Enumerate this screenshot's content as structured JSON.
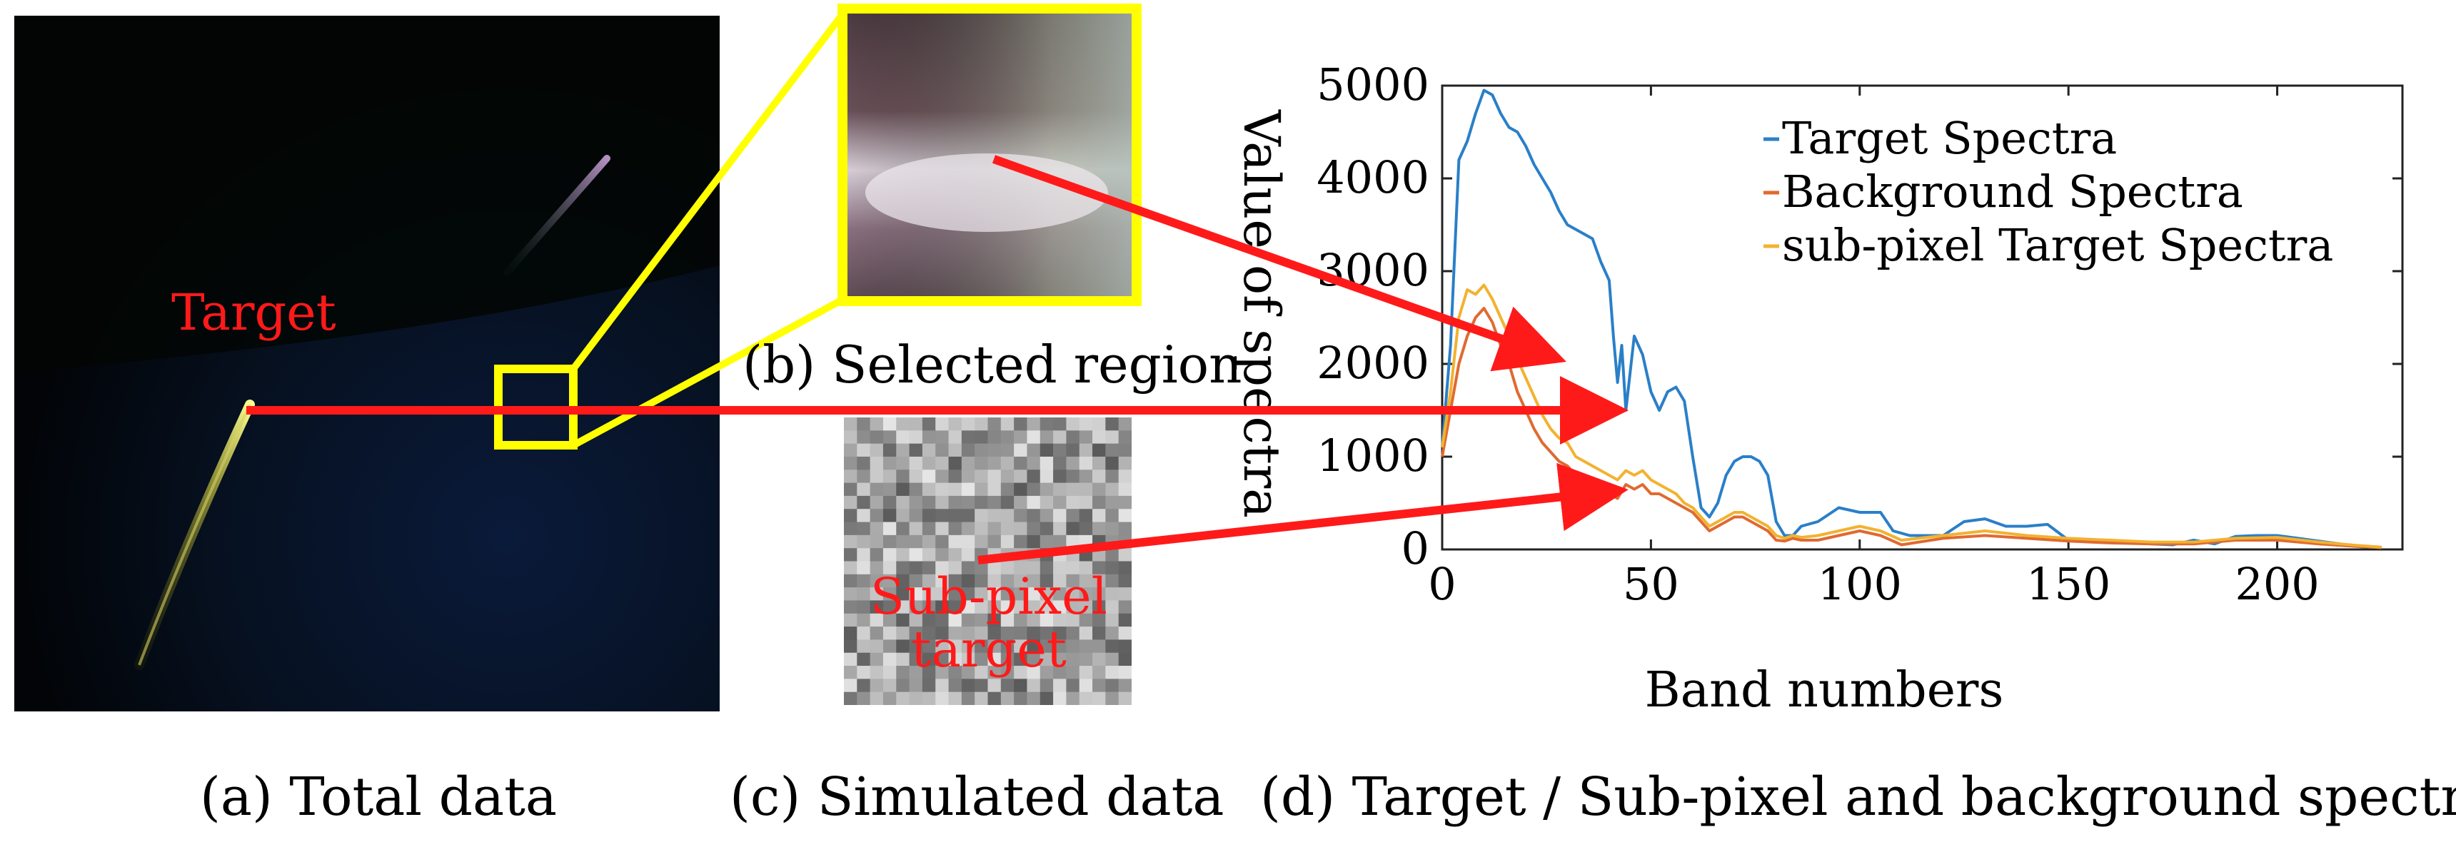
{
  "captions": {
    "a": "(a) Total data",
    "b": "(b) Selected region",
    "c": "(c) Simulated data",
    "d": "(d) Target / Sub-pixel and background spectra"
  },
  "labels": {
    "target": "Target",
    "subpixel_line1": "Sub-pixel",
    "subpixel_line2": "target"
  },
  "colors": {
    "arrow": "#ff1a1a",
    "highlight_box": "#ffff00",
    "target_spectra": "#2a7fc8",
    "background_spectra": "#e06a30",
    "subpixel_spectra": "#f2b230"
  },
  "chart_data": {
    "type": "line",
    "title": "",
    "xlabel": "Band numbers",
    "ylabel": "Value of spectra",
    "xlim": [
      0,
      230
    ],
    "ylim": [
      0,
      5000
    ],
    "xticks": [
      0,
      50,
      100,
      150,
      200
    ],
    "yticks": [
      0,
      1000,
      2000,
      3000,
      4000,
      5000
    ],
    "legend_position": "top-right",
    "grid": false,
    "series": [
      {
        "name": "Target Spectra",
        "x": [
          0,
          2,
          4,
          6,
          8,
          10,
          12,
          14,
          16,
          18,
          20,
          22,
          24,
          26,
          28,
          30,
          32,
          34,
          36,
          38,
          40,
          41,
          42,
          43,
          44,
          46,
          48,
          50,
          52,
          54,
          56,
          58,
          60,
          62,
          64,
          66,
          68,
          70,
          72,
          74,
          76,
          78,
          80,
          82,
          84,
          86,
          90,
          95,
          100,
          105,
          108,
          112,
          120,
          125,
          130,
          135,
          140,
          145,
          150,
          160,
          170,
          175,
          180,
          185,
          190,
          195,
          200,
          205,
          210,
          215,
          220,
          225
        ],
        "y": [
          1100,
          2200,
          4200,
          4400,
          4700,
          4950,
          4900,
          4700,
          4550,
          4500,
          4350,
          4150,
          4000,
          3850,
          3650,
          3500,
          3450,
          3400,
          3350,
          3100,
          2900,
          2300,
          1800,
          2200,
          1500,
          2300,
          2100,
          1700,
          1500,
          1700,
          1750,
          1600,
          1000,
          450,
          350,
          500,
          800,
          950,
          1000,
          1000,
          950,
          800,
          300,
          150,
          150,
          250,
          300,
          450,
          400,
          400,
          200,
          150,
          150,
          300,
          330,
          250,
          250,
          270,
          100,
          100,
          60,
          50,
          100,
          60,
          140,
          150,
          150,
          120,
          90,
          60,
          30,
          20
        ]
      },
      {
        "name": "Background Spectra",
        "x": [
          0,
          2,
          4,
          6,
          8,
          10,
          12,
          14,
          16,
          18,
          20,
          22,
          24,
          26,
          28,
          30,
          32,
          34,
          36,
          38,
          40,
          42,
          44,
          46,
          48,
          50,
          52,
          54,
          56,
          58,
          60,
          62,
          64,
          66,
          68,
          70,
          72,
          74,
          76,
          78,
          80,
          82,
          84,
          86,
          90,
          95,
          100,
          105,
          110,
          120,
          130,
          140,
          150,
          160,
          170,
          180,
          190,
          200,
          210,
          220,
          225
        ],
        "y": [
          1000,
          1500,
          2000,
          2300,
          2500,
          2600,
          2450,
          2200,
          2000,
          1700,
          1500,
          1300,
          1150,
          1050,
          950,
          900,
          800,
          750,
          700,
          650,
          600,
          550,
          700,
          650,
          700,
          600,
          600,
          550,
          500,
          450,
          400,
          300,
          200,
          250,
          300,
          350,
          350,
          300,
          250,
          200,
          100,
          90,
          120,
          100,
          100,
          150,
          200,
          150,
          50,
          120,
          150,
          120,
          90,
          70,
          60,
          60,
          100,
          100,
          60,
          30,
          20
        ]
      },
      {
        "name": "sub-pixel Target Spectra",
        "x": [
          0,
          2,
          4,
          6,
          8,
          10,
          12,
          14,
          16,
          18,
          20,
          22,
          24,
          26,
          28,
          30,
          32,
          34,
          36,
          38,
          40,
          42,
          44,
          46,
          48,
          50,
          52,
          54,
          56,
          58,
          60,
          62,
          64,
          66,
          68,
          70,
          72,
          74,
          76,
          78,
          80,
          82,
          84,
          86,
          90,
          95,
          100,
          105,
          110,
          120,
          130,
          140,
          150,
          160,
          170,
          180,
          190,
          200,
          210,
          220,
          225
        ],
        "y": [
          1100,
          1700,
          2500,
          2800,
          2750,
          2850,
          2700,
          2500,
          2300,
          2050,
          1850,
          1650,
          1450,
          1300,
          1200,
          1150,
          1000,
          950,
          900,
          850,
          800,
          750,
          850,
          800,
          850,
          750,
          700,
          650,
          600,
          500,
          450,
          350,
          250,
          300,
          350,
          400,
          400,
          350,
          300,
          250,
          150,
          120,
          150,
          130,
          150,
          200,
          250,
          200,
          100,
          150,
          200,
          150,
          120,
          100,
          80,
          80,
          120,
          130,
          80,
          40,
          25
        ]
      }
    ]
  }
}
